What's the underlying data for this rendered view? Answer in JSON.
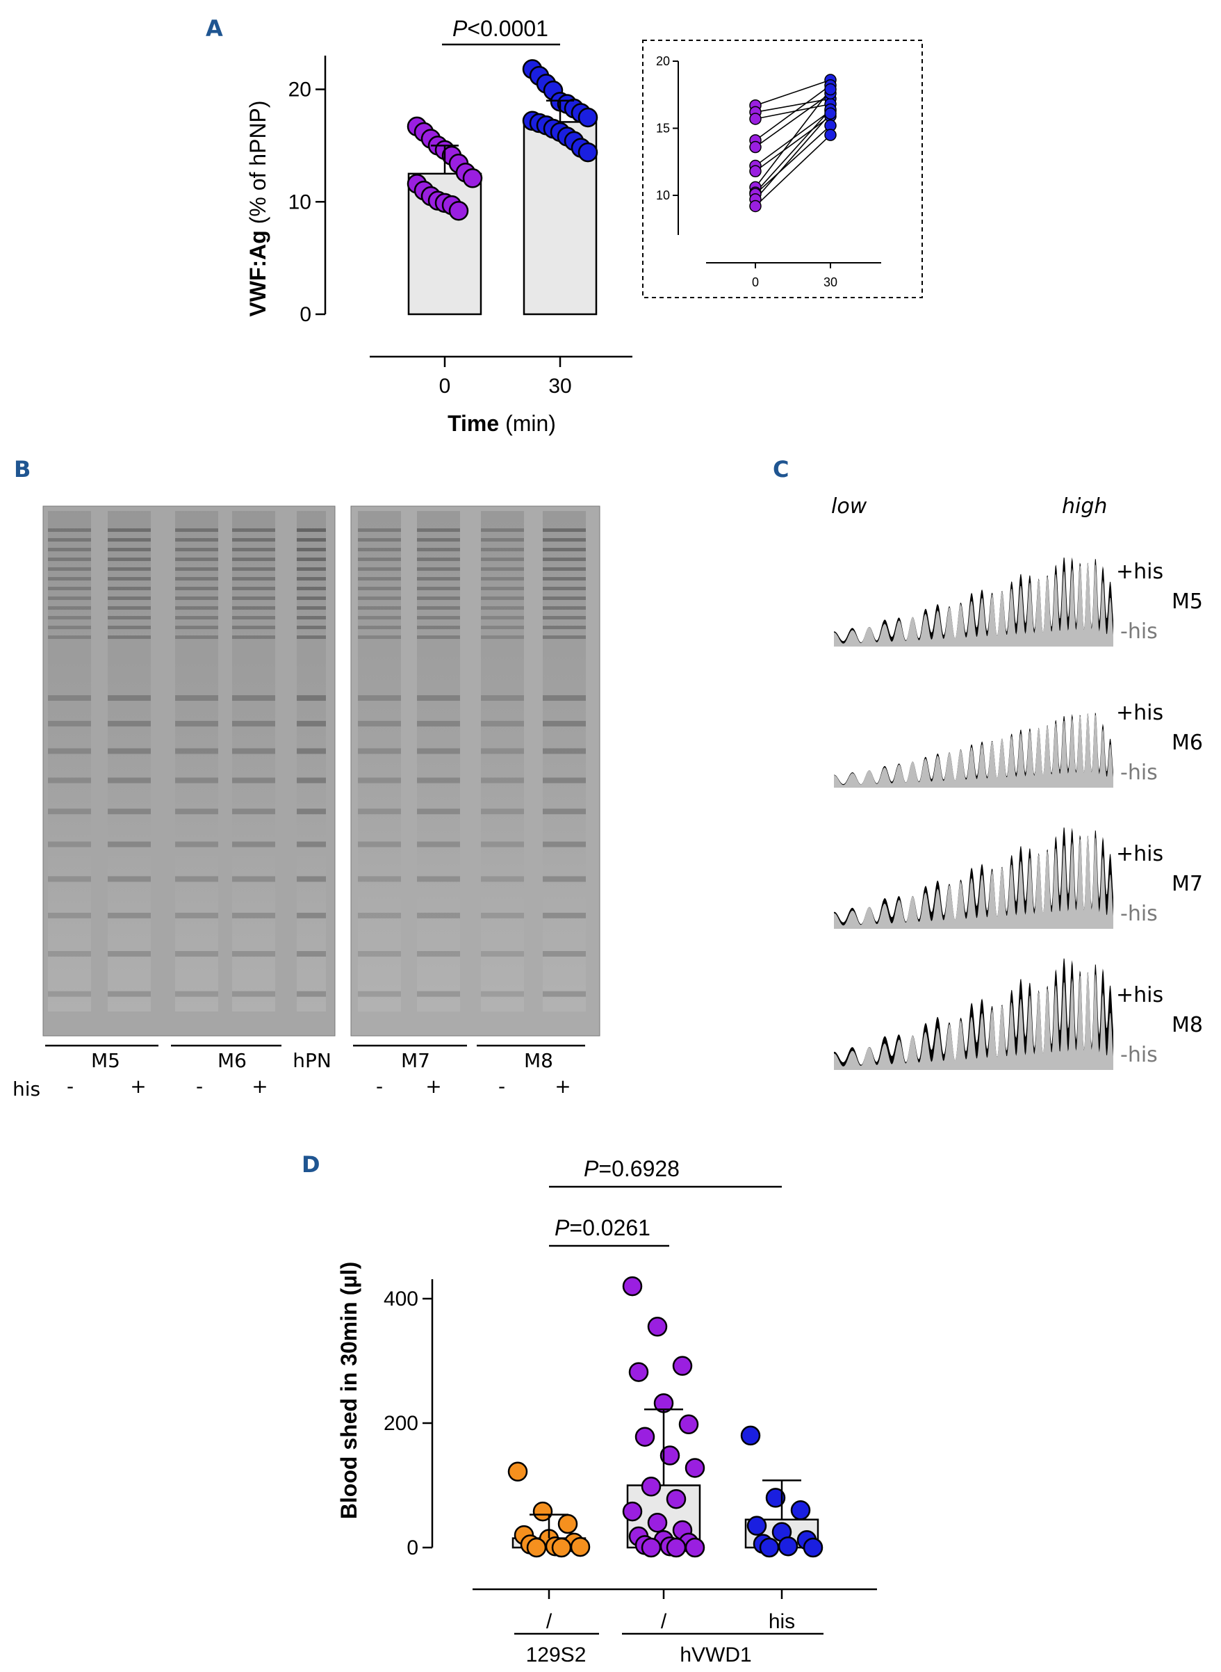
{
  "panels": {
    "A": "A",
    "B": "B",
    "C": "C",
    "D": "D"
  },
  "chart_data": [
    {
      "id": "A",
      "type": "bar",
      "ylabel_bold": "VWF:Ag",
      "ylabel_rest": " (% of hPNP)",
      "xlabel_bold": "Time",
      "xlabel_rest": " (min)",
      "categories": [
        "0",
        "30"
      ],
      "ylim": [
        0,
        23
      ],
      "yticks": [
        "0",
        "10",
        "20"
      ],
      "means": [
        12.5,
        17.1
      ],
      "sd": [
        2.5,
        1.9
      ],
      "colors": [
        "#9a1fe0",
        "#1a1fe0"
      ],
      "points": [
        [
          16.7,
          16.2,
          15.6,
          15.0,
          14.6,
          14.1,
          13.4,
          12.6,
          12.1,
          11.6,
          11.0,
          10.5,
          10.1,
          9.9,
          9.7,
          9.2
        ],
        [
          21.8,
          21.2,
          20.5,
          19.9,
          18.9,
          18.7,
          18.3,
          17.9,
          17.5,
          17.2,
          17.0,
          16.8,
          16.5,
          16.2,
          15.8,
          15.4,
          14.8,
          14.4
        ]
      ],
      "annotation_italic": "P",
      "annotation_rest": "<0.0001"
    },
    {
      "id": "A-inset",
      "type": "line",
      "x": [
        "0",
        "30"
      ],
      "ylim": [
        7,
        20
      ],
      "yticks": [
        "10",
        "15",
        "20"
      ],
      "pairs": [
        [
          16.7,
          18.6
        ],
        [
          16.2,
          17.2
        ],
        [
          15.7,
          16.8
        ],
        [
          14.1,
          18.2
        ],
        [
          13.6,
          17.6
        ],
        [
          12.2,
          16.3
        ],
        [
          11.8,
          15.9
        ],
        [
          10.6,
          17.9
        ],
        [
          10.2,
          16.4
        ],
        [
          10.1,
          15.2
        ],
        [
          9.7,
          16.1
        ],
        [
          9.2,
          14.5
        ]
      ]
    },
    {
      "id": "B",
      "type": "gel",
      "groups_left": [
        "M5",
        "M6"
      ],
      "marker_label": "hPN",
      "groups_right": [
        "M7",
        "M8"
      ],
      "his_label": "his",
      "minus": "-",
      "plus": "+"
    },
    {
      "id": "C",
      "type": "area",
      "low_label": "low",
      "high_label": "high",
      "plus_label": "+his",
      "minus_label": "-his",
      "mice": [
        "M5",
        "M6",
        "M7",
        "M8"
      ]
    },
    {
      "id": "D",
      "type": "bar",
      "ylabel": "Blood shed in 30min (µl)",
      "ylim": [
        0,
        430
      ],
      "yticks": [
        "0",
        "200",
        "400"
      ],
      "categories": [
        "/",
        "/",
        "his"
      ],
      "groups": [
        "129S2",
        "hVWD1"
      ],
      "means": [
        15,
        100,
        45
      ],
      "sd": [
        38,
        122,
        63
      ],
      "colors": [
        "#f5901e",
        "#9a1fe0",
        "#1a1fe0"
      ],
      "points": [
        [
          122,
          58,
          38,
          20,
          14,
          8,
          5,
          2,
          1,
          0,
          0
        ],
        [
          420,
          355,
          292,
          282,
          232,
          198,
          178,
          148,
          128,
          98,
          78,
          58,
          40,
          28,
          18,
          12,
          8,
          4,
          2,
          0,
          0,
          0
        ],
        [
          180,
          80,
          60,
          35,
          25,
          12,
          6,
          2,
          0,
          0
        ]
      ],
      "annotations": [
        {
          "italic": "P",
          "rest": "=0.6928"
        },
        {
          "italic": "P",
          "rest": "=0.0261"
        }
      ]
    }
  ]
}
